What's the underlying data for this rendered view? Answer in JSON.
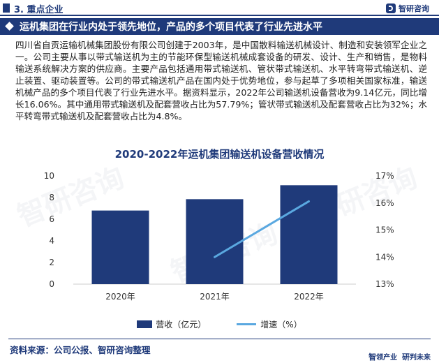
{
  "header": {
    "section_label": "3. 重点企业",
    "brand_name": "智研咨询"
  },
  "banner": {
    "title": "运机集团在行业内处于领先地位，产品的多个项目代表了行业先进水平"
  },
  "paragraph": "四川省自贡运输机械集团股份有限公司创建于2003年，是中国散料输送机械设计、制造和安装领军企业之一。公司主要从事以带式输送机为主的节能环保型输送机械成套设备的研发、设计、生产和销售，是物料输送系统解决方案的供应商。主要产品包括通用带式输送机、管状带式输送机、水平转弯带式输送机、逆止装置、驱动装置等。公司的带式输送机产品在国内处于优势地位，参与起草了多项相关国家标准，输送机械产品的多个项目代表了行业先进水平。据资料显示，2022年公司输送机设备营收为9.14亿元，同比增长16.06%。其中通用带式输送机及配套营收占比为57.79%；管状带式输送机及配套营收占比为32%；水平转弯带式输送机及配套营收占比为4.8%。",
  "chart_data": {
    "type": "bar",
    "title": "2020-2022年运机集团输送机设备营收情况",
    "categories": [
      "2020年",
      "2021年",
      "2022年"
    ],
    "series": [
      {
        "name": "营收（亿元）",
        "type": "bar",
        "axis": "left",
        "values": [
          6.8,
          7.85,
          9.14
        ],
        "color": "#1f3a7a"
      },
      {
        "name": "增速（%）",
        "type": "line",
        "axis": "right",
        "values": [
          null,
          14.0,
          16.06
        ],
        "color": "#5aa8e0"
      }
    ],
    "y_left": {
      "min": 0,
      "max": 10,
      "ticks": [
        "0",
        "2",
        "4",
        "6",
        "8",
        "10"
      ]
    },
    "y_right": {
      "min": 13,
      "max": 17,
      "ticks": [
        "13%",
        "14%",
        "15%",
        "16%",
        "17%"
      ]
    },
    "grid": false,
    "legend_position": "bottom"
  },
  "footer": {
    "source": "资料来源：公司公报、智研咨询整理",
    "slogan_a": "智",
    "slogan_b": "领产业",
    "slogan_c": "研",
    "slogan_d": "判未来"
  }
}
